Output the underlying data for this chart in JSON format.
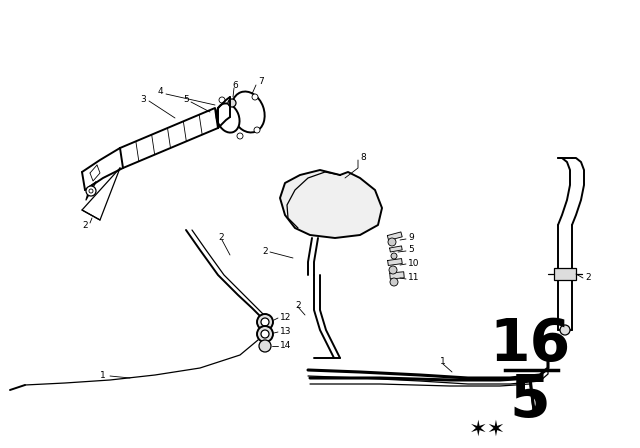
{
  "background_color": "#ffffff",
  "line_color": "#000000",
  "page_number_top": "16",
  "page_number_bot": "5"
}
